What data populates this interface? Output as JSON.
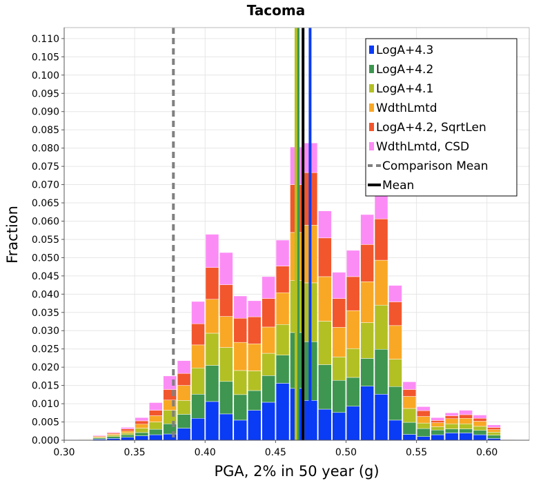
{
  "chart_data": {
    "type": "bar",
    "stacked": true,
    "title": "Tacoma",
    "xlabel": "PGA, 2% in 50 year (g)",
    "ylabel": "Fraction",
    "xlim": [
      0.3,
      0.63
    ],
    "ylim": [
      0.0,
      0.113
    ],
    "x_ticks": [
      "0.30",
      "0.35",
      "0.40",
      "0.45",
      "0.50",
      "0.55",
      "0.60"
    ],
    "y_ticks": [
      "0.000",
      "0.005",
      "0.010",
      "0.015",
      "0.020",
      "0.025",
      "0.030",
      "0.035",
      "0.040",
      "0.045",
      "0.050",
      "0.055",
      "0.060",
      "0.065",
      "0.070",
      "0.075",
      "0.080",
      "0.085",
      "0.090",
      "0.095",
      "0.100",
      "0.105",
      "0.110"
    ],
    "bin_width": 0.01,
    "bin_centers": [
      0.315,
      0.325,
      0.335,
      0.345,
      0.355,
      0.365,
      0.375,
      0.385,
      0.395,
      0.405,
      0.415,
      0.425,
      0.435,
      0.445,
      0.455,
      0.465,
      0.475,
      0.485,
      0.495,
      0.505,
      0.515,
      0.525,
      0.535,
      0.545,
      0.555,
      0.565,
      0.575,
      0.585,
      0.595,
      0.605,
      0.615
    ],
    "series": [
      {
        "name": "LogA+4.3",
        "color": "#0a3bf5",
        "values": [
          0.0001,
          0.0003,
          0.0005,
          0.0008,
          0.0012,
          0.0015,
          0.0017,
          0.0033,
          0.006,
          0.0106,
          0.0072,
          0.0055,
          0.0082,
          0.0104,
          0.0156,
          0.0142,
          0.0109,
          0.0085,
          0.0076,
          0.0093,
          0.0148,
          0.0126,
          0.0055,
          0.0016,
          0.001,
          0.0015,
          0.002,
          0.002,
          0.0015,
          0.0005,
          0.0001
        ]
      },
      {
        "name": "LogA+4.2",
        "color": "#3e9650",
        "values": [
          0.0001,
          0.0003,
          0.0005,
          0.0007,
          0.0009,
          0.0015,
          0.0028,
          0.0038,
          0.0066,
          0.0099,
          0.0089,
          0.007,
          0.0054,
          0.0073,
          0.0077,
          0.0153,
          0.0161,
          0.0122,
          0.0088,
          0.0079,
          0.0076,
          0.0123,
          0.0092,
          0.0033,
          0.0022,
          0.0013,
          0.0011,
          0.0011,
          0.0012,
          0.0009,
          0.0001
        ]
      },
      {
        "name": "LogA+4.1",
        "color": "#b2c024",
        "values": [
          0.0001,
          0.0002,
          0.0004,
          0.0005,
          0.0012,
          0.002,
          0.0037,
          0.0038,
          0.0072,
          0.0088,
          0.0093,
          0.0066,
          0.0054,
          0.0061,
          0.0084,
          0.0142,
          0.0161,
          0.0119,
          0.0064,
          0.0079,
          0.0098,
          0.0121,
          0.0075,
          0.0038,
          0.0015,
          0.0009,
          0.0014,
          0.0014,
          0.0011,
          0.0008,
          0.0001
        ]
      },
      {
        "name": "WdthLmtd",
        "color": "#f9a825",
        "values": [
          0.0001,
          0.0002,
          0.0003,
          0.0005,
          0.0011,
          0.0017,
          0.0028,
          0.0041,
          0.0063,
          0.0093,
          0.0085,
          0.0077,
          0.0074,
          0.0072,
          0.0087,
          0.0132,
          0.0158,
          0.0122,
          0.0081,
          0.0104,
          0.0112,
          0.0123,
          0.0092,
          0.0033,
          0.0018,
          0.0011,
          0.0014,
          0.0015,
          0.0014,
          0.0007,
          0.0001
        ]
      },
      {
        "name": "LogA+4.2, SqrtLen",
        "color": "#f2562d",
        "values": [
          0.0001,
          0.0002,
          0.0003,
          0.0006,
          0.0009,
          0.0015,
          0.0029,
          0.0033,
          0.0058,
          0.0087,
          0.0087,
          0.0066,
          0.0074,
          0.0078,
          0.0073,
          0.0131,
          0.0144,
          0.0106,
          0.0079,
          0.0093,
          0.0102,
          0.0113,
          0.0065,
          0.0019,
          0.0016,
          0.0006,
          0.0008,
          0.001,
          0.0008,
          0.0006,
          0.0001
        ]
      },
      {
        "name": "WdthLmtd, CSD",
        "color": "#fc8cf5",
        "values": [
          0.0,
          0.0002,
          0.0002,
          0.0004,
          0.0009,
          0.0021,
          0.0037,
          0.0035,
          0.0061,
          0.0091,
          0.0088,
          0.0061,
          0.0044,
          0.006,
          0.0071,
          0.0103,
          0.0081,
          0.0074,
          0.0072,
          0.0072,
          0.0082,
          0.0076,
          0.0045,
          0.0021,
          0.0011,
          0.0008,
          0.0008,
          0.0012,
          0.0009,
          0.0007,
          0.0001
        ]
      }
    ],
    "vertical_lines": [
      {
        "name": "LogA+4.2",
        "x": 0.466,
        "color": "#3e9650",
        "style": "solid"
      },
      {
        "name": "LogA+4.1",
        "x": 0.4645,
        "color": "#b2c024",
        "style": "solid"
      },
      {
        "name": "LogA+4.3",
        "x": 0.4745,
        "color": "#0a3bf5",
        "style": "solid"
      },
      {
        "name": "Comparison Mean",
        "x": 0.3775,
        "color": "#808080",
        "style": "dashed"
      },
      {
        "name": "Mean",
        "x": 0.4695,
        "color": "#000000",
        "style": "solid"
      }
    ],
    "legend": {
      "position": "top-right",
      "entries": [
        {
          "label": "LogA+4.3",
          "kind": "box",
          "color": "#0a3bf5"
        },
        {
          "label": "LogA+4.2",
          "kind": "box",
          "color": "#3e9650"
        },
        {
          "label": "LogA+4.1",
          "kind": "box",
          "color": "#b2c024"
        },
        {
          "label": "WdthLmtd",
          "kind": "box",
          "color": "#f9a825"
        },
        {
          "label": "LogA+4.2, SqrtLen",
          "kind": "box",
          "color": "#f2562d"
        },
        {
          "label": "WdthLmtd, CSD",
          "kind": "box",
          "color": "#fc8cf5"
        },
        {
          "label": "Comparison Mean",
          "kind": "dashed",
          "color": "#808080"
        },
        {
          "label": "Mean",
          "kind": "solid",
          "color": "#000000"
        }
      ]
    },
    "grid": true
  }
}
